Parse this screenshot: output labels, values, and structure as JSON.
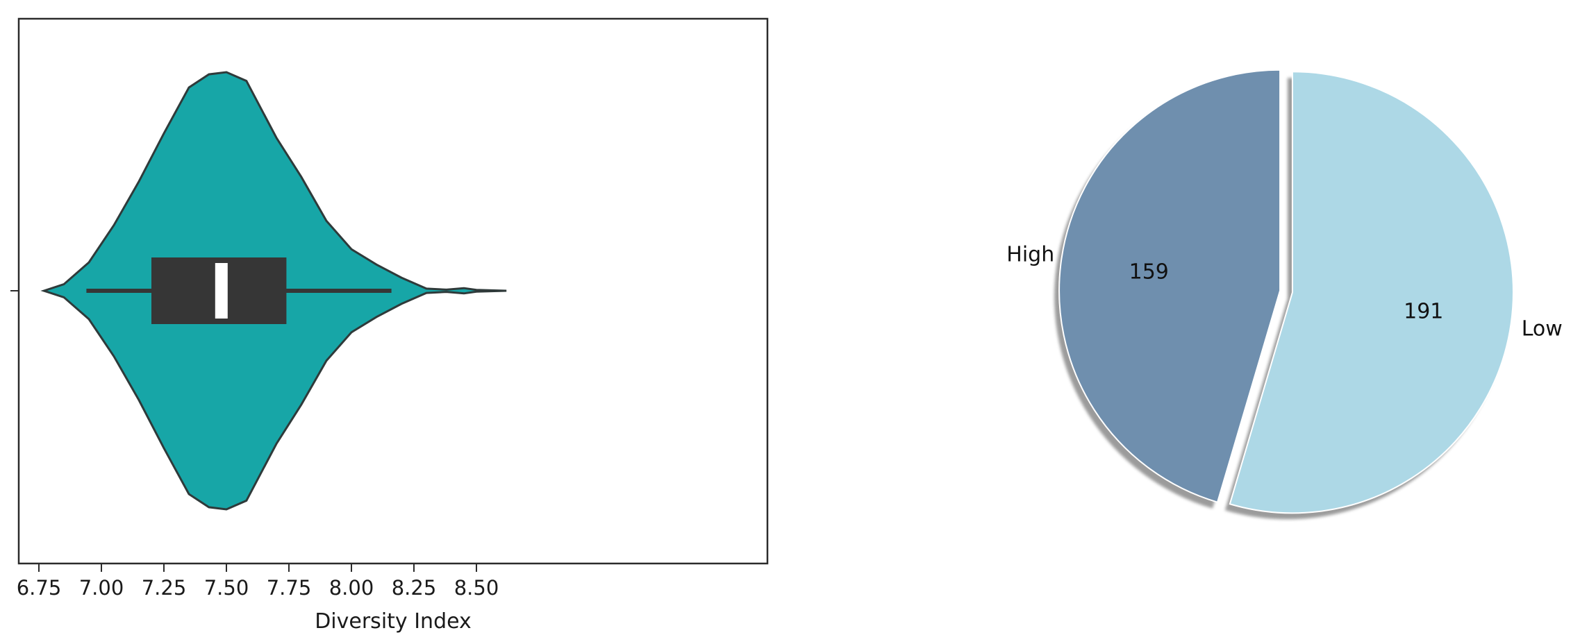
{
  "chart_data": [
    {
      "type": "violin",
      "xlabel": "Diversity Index",
      "ylabel": "",
      "xlim": [
        6.75,
        8.62
      ],
      "xticks": [
        "6.75",
        "7.00",
        "7.25",
        "7.50",
        "7.75",
        "8.00",
        "8.25",
        "8.50"
      ],
      "fill_color": "#17a6a7",
      "box_color": "#363636",
      "median_color": "#ffffff",
      "stats": {
        "min": 6.94,
        "q1": 7.2,
        "median": 7.48,
        "q3": 7.74,
        "whisker_high": 8.16,
        "kde_min": 6.77,
        "kde_max": 8.62
      },
      "density": [
        [
          6.77,
          0.0
        ],
        [
          6.85,
          0.03
        ],
        [
          6.95,
          0.13
        ],
        [
          7.05,
          0.3
        ],
        [
          7.15,
          0.5
        ],
        [
          7.25,
          0.72
        ],
        [
          7.35,
          0.93
        ],
        [
          7.43,
          0.99
        ],
        [
          7.5,
          1.0
        ],
        [
          7.58,
          0.96
        ],
        [
          7.7,
          0.7
        ],
        [
          7.8,
          0.52
        ],
        [
          7.9,
          0.32
        ],
        [
          8.0,
          0.19
        ],
        [
          8.1,
          0.12
        ],
        [
          8.2,
          0.06
        ],
        [
          8.3,
          0.01
        ],
        [
          8.38,
          0.005
        ],
        [
          8.45,
          0.012
        ],
        [
          8.5,
          0.004
        ],
        [
          8.62,
          0.0
        ]
      ]
    },
    {
      "type": "pie",
      "slices": [
        {
          "label": "High",
          "value": 159,
          "text": "159",
          "color": "#6f8fae"
        },
        {
          "label": "Low",
          "value": 191,
          "text": "191",
          "color": "#add8e6"
        }
      ],
      "shadow": true,
      "explode": true
    }
  ]
}
